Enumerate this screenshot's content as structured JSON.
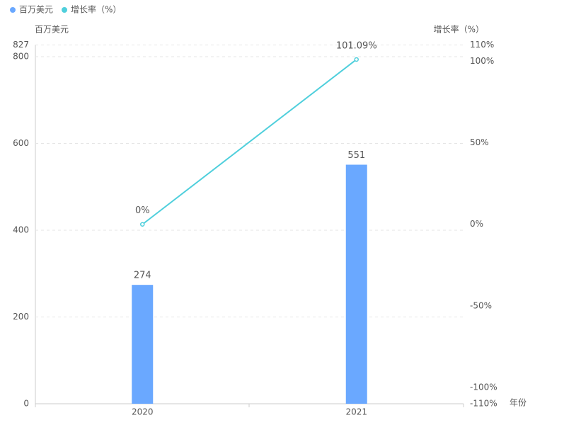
{
  "chart_data": {
    "type": "bar",
    "x_label": "年份",
    "y_label": "百万美元",
    "y2_label": "增长率（%）",
    "categories": [
      "2020",
      "2021"
    ],
    "series": [
      {
        "name": "百万美元",
        "type": "bar",
        "color": "#6aa8ff",
        "values": [
          274,
          551
        ]
      },
      {
        "name": "增长率（%）",
        "type": "line",
        "axis": "y2",
        "color": "#4fcfdc",
        "values": [
          0,
          101.09
        ],
        "value_labels": [
          "0%",
          "101.09%"
        ]
      }
    ],
    "ylim": [
      0,
      827
    ],
    "yticks": [
      0,
      200,
      400,
      600,
      800,
      827
    ],
    "y2lim": [
      -110,
      110
    ],
    "y2ticks": [
      {
        "value": -110,
        "label": "-110%"
      },
      {
        "value": -100,
        "label": "-100%"
      },
      {
        "value": -50,
        "label": "-50%"
      },
      {
        "value": 0,
        "label": "0%"
      },
      {
        "value": 50,
        "label": "50%"
      },
      {
        "value": 100,
        "label": "100%"
      },
      {
        "value": 110,
        "label": "110%"
      }
    ],
    "grid": true
  }
}
